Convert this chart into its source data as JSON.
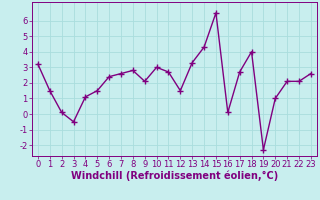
{
  "x": [
    0,
    1,
    2,
    3,
    4,
    5,
    6,
    7,
    8,
    9,
    10,
    11,
    12,
    13,
    14,
    15,
    16,
    17,
    18,
    19,
    20,
    21,
    22,
    23
  ],
  "y": [
    3.2,
    1.5,
    0.1,
    -0.5,
    1.1,
    1.5,
    2.4,
    2.6,
    2.8,
    2.1,
    3.0,
    2.7,
    1.5,
    3.3,
    4.3,
    6.5,
    0.1,
    2.7,
    4.0,
    -2.3,
    1.0,
    2.1,
    2.1,
    2.6
  ],
  "line_color": "#800080",
  "marker": "+",
  "marker_size": 4,
  "line_width": 1.0,
  "xlabel": "Windchill (Refroidissement éolien,°C)",
  "ylim": [
    -2.7,
    7.2
  ],
  "xlim": [
    -0.5,
    23.5
  ],
  "yticks": [
    -2,
    -1,
    0,
    1,
    2,
    3,
    4,
    5,
    6
  ],
  "xticks": [
    0,
    1,
    2,
    3,
    4,
    5,
    6,
    7,
    8,
    9,
    10,
    11,
    12,
    13,
    14,
    15,
    16,
    17,
    18,
    19,
    20,
    21,
    22,
    23
  ],
  "bg_color": "#c8eeee",
  "grid_color": "#aadddd",
  "line_border_color": "#800080",
  "tick_color": "#800080",
  "label_color": "#800080",
  "font_size": 6,
  "xlabel_font_size": 7
}
